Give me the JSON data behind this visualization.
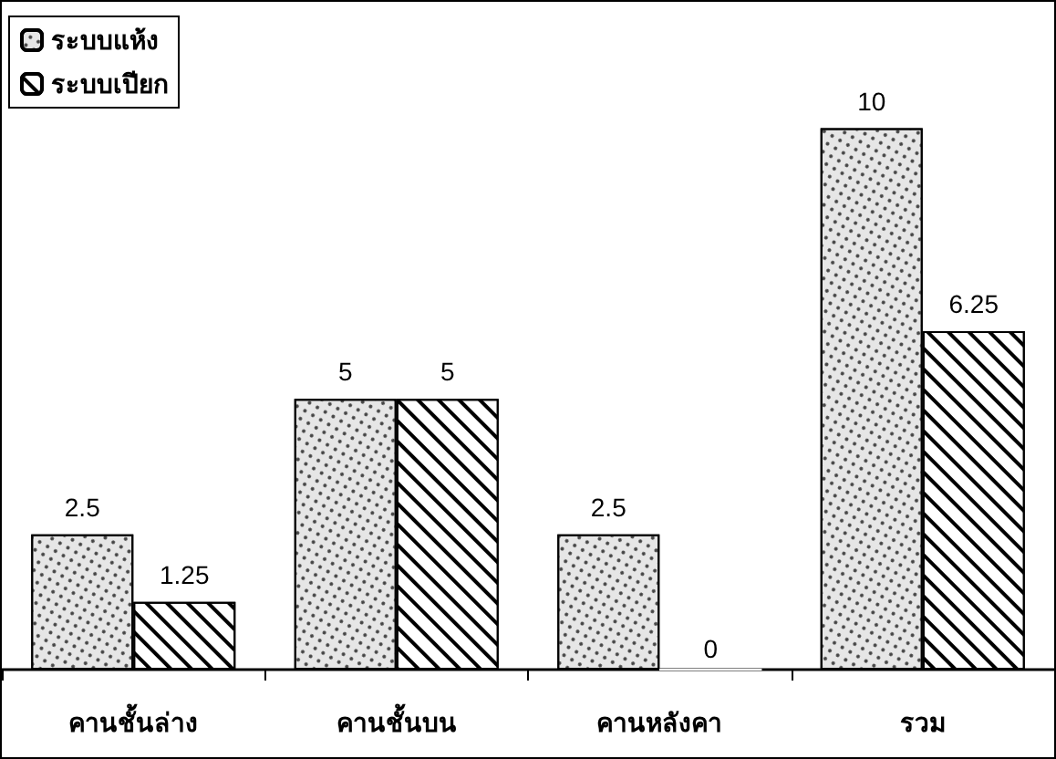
{
  "chart_data": {
    "type": "bar",
    "categories": [
      "คานชั้นล่าง",
      "คานชั้นบน",
      "คานหลังคา",
      "รวม"
    ],
    "series": [
      {
        "name": "ระบบแห้ง",
        "color": "#e6e6e6",
        "values": [
          2.5,
          5,
          2.5,
          10
        ]
      },
      {
        "name": "ระบบเปียก",
        "color": "#ffffff",
        "values": [
          1.25,
          5,
          0,
          6.25
        ]
      }
    ],
    "data_labels": true,
    "legend": "top left",
    "grid": false
  }
}
